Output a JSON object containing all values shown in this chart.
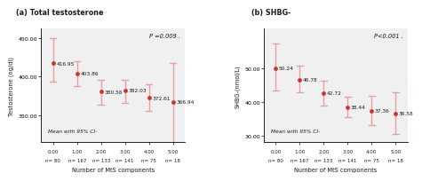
{
  "panel_a": {
    "title": "(a) Total testosterone",
    "xlabel": "Number of MtS components",
    "ylabel": "Testosterone (ng/dl)",
    "pvalue": "P =0.009 .",
    "legend": "Mean with 95% CI-",
    "x": [
      0,
      1,
      2,
      3,
      4,
      5
    ],
    "y": [
      416.95,
      403.86,
      380.56,
      382.03,
      372.61,
      366.94
    ],
    "ci_low": [
      393.0,
      388.0,
      364.0,
      366.0,
      355.0,
      313.0
    ],
    "ci_high": [
      450.0,
      420.0,
      396.0,
      396.0,
      390.0,
      418.0
    ],
    "xlim": [
      -0.5,
      5.5
    ],
    "ylim": [
      315.0,
      462.0
    ],
    "yticks": [
      350.0,
      400.0,
      450.0
    ],
    "ytick_labels": [
      "350.00",
      "400.00",
      "450.00"
    ],
    "xtick_vals": [
      0,
      1,
      2,
      3,
      4,
      5
    ],
    "xtick_line1": [
      "0.00",
      "1.00",
      "2.00",
      "3.00",
      "4.00",
      "5.00"
    ],
    "xtick_line2": [
      "n= 80",
      "n= 167",
      "n= 133",
      "n= 141",
      "n= 75",
      "n= 18"
    ],
    "point_labels": [
      "416.95",
      "403.86",
      "380.56",
      "382.03",
      "372.61",
      "366.94"
    ],
    "label_side": [
      "right",
      "right",
      "right",
      "right",
      "right",
      "right"
    ]
  },
  "panel_b": {
    "title": "(b) SHBG-",
    "xlabel": "Number of MtS components",
    "ylabel": "SHBG-(nmol/L)",
    "pvalue": "P<0.001 .",
    "legend": "Mean with 95% CI-",
    "x": [
      0,
      1,
      2,
      3,
      4,
      5
    ],
    "y": [
      50.24,
      46.78,
      42.72,
      38.44,
      37.36,
      36.58
    ],
    "ci_low": [
      43.5,
      43.0,
      39.0,
      35.5,
      33.0,
      30.5
    ],
    "ci_high": [
      57.5,
      51.0,
      46.5,
      41.5,
      42.0,
      43.0
    ],
    "xlim": [
      -0.5,
      5.5
    ],
    "ylim": [
      28.0,
      62.0
    ],
    "yticks": [
      30.0,
      40.0,
      50.0
    ],
    "ytick_labels": [
      "30.00",
      "40.00",
      "50.00"
    ],
    "xtick_vals": [
      0,
      1,
      2,
      3,
      4,
      5
    ],
    "xtick_line1": [
      "0.00",
      "1.00",
      "2.00",
      "3.00",
      "4.00",
      "5.00"
    ],
    "xtick_line2": [
      "n= 80",
      "n= 167",
      "n= 133",
      "n= 141",
      "n= 75",
      "n= 18"
    ],
    "point_labels": [
      "50.24",
      "46.78",
      "42.72",
      "38.44",
      "37.36",
      "36.58"
    ],
    "label_side": [
      "right",
      "right",
      "right",
      "right",
      "right",
      "right"
    ]
  },
  "dot_color": "#cc3333",
  "line_color": "#e8a0a0",
  "text_color": "#1a1a1a",
  "bg_color": "#ffffff",
  "panel_bg": "#f0f0f0"
}
